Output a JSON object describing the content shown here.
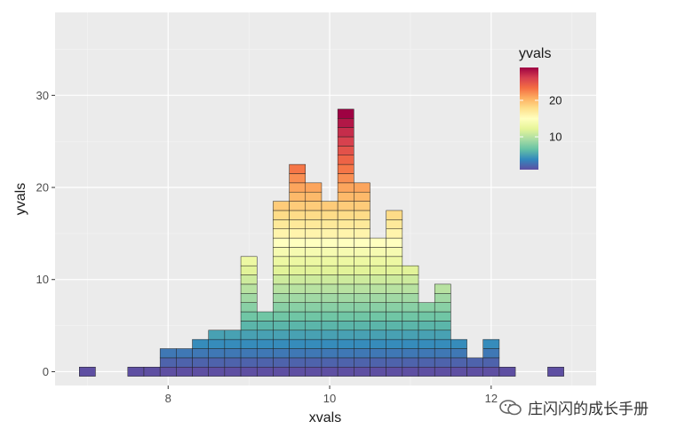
{
  "chart_data": {
    "type": "histogram",
    "xlabel": "xvals",
    "ylabel": "yvals",
    "xlim": [
      6.6,
      13.3
    ],
    "ylim": [
      -1.5,
      39
    ],
    "x_ticks": [
      8,
      10,
      12
    ],
    "y_ticks": [
      0,
      10,
      20,
      30
    ],
    "bin_width": 0.2,
    "bin_centers": [
      7.0,
      7.6,
      7.8,
      8.0,
      8.2,
      8.4,
      8.6,
      8.8,
      9.0,
      9.2,
      9.4,
      9.6,
      9.8,
      10.0,
      10.2,
      10.4,
      10.6,
      10.8,
      11.0,
      11.2,
      11.4,
      11.6,
      11.8,
      12.0,
      12.2,
      12.8
    ],
    "counts": [
      1,
      1,
      1,
      3,
      3,
      4,
      5,
      5,
      13,
      7,
      19,
      23,
      21,
      19,
      29,
      21,
      15,
      18,
      12,
      8,
      10,
      4,
      2,
      4,
      1,
      1
    ],
    "color_scale": {
      "name": "yvals",
      "palette": "Spectral (reversed)",
      "domain": [
        1,
        29
      ],
      "legend_ticks": [
        10,
        20
      ],
      "colors": [
        "#5e4fa2",
        "#3288bd",
        "#66c2a5",
        "#abdda4",
        "#e6f598",
        "#ffffbf",
        "#fee08b",
        "#fdae61",
        "#f46d43",
        "#d53e4f",
        "#9e0142"
      ]
    },
    "grid": true,
    "legend_position": "top-right, inside plot"
  },
  "watermark": {
    "text": "庄闪闪的成长手册",
    "icon": "wechat-logo-icon"
  }
}
